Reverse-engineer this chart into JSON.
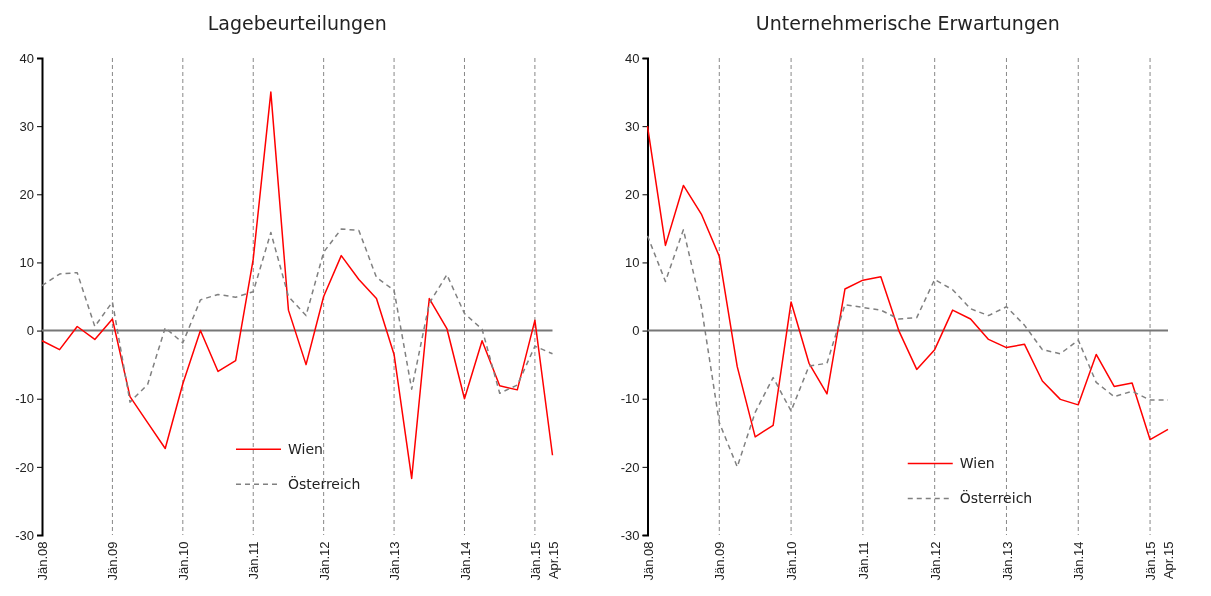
{
  "chart_data": [
    {
      "type": "line",
      "title": "Lagebeurteilungen",
      "categories": [
        "Jän.08",
        null,
        null,
        null,
        "Jän.09",
        null,
        null,
        null,
        "Jän.10",
        null,
        null,
        null,
        "Jän.11",
        null,
        null,
        null,
        "Jän.12",
        null,
        null,
        null,
        "Jän.13",
        null,
        null,
        null,
        "Jän.14",
        null,
        null,
        null,
        "Jän.15",
        "Apr.15"
      ],
      "series": [
        {
          "name": "Wien",
          "color": "#ff0000",
          "line_style": "solid",
          "values": [
            -1.5,
            -2.8,
            0.6,
            -1.3,
            1.7,
            -9.7,
            -13.5,
            -17.3,
            -7.8,
            0,
            -6.0,
            -4.4,
            10.5,
            35,
            3,
            -5,
            5,
            11,
            7.5,
            4.7,
            -3.5,
            -21.7,
            4.7,
            0.3,
            -10,
            -1.5,
            -8.1,
            -8.7,
            1.5,
            -18.3
          ]
        },
        {
          "name": "Österreich",
          "color": "#808080",
          "line_style": "dashed",
          "values": [
            6.6,
            8.3,
            8.5,
            0.6,
            4.2,
            -10.5,
            -7.9,
            0.4,
            -1.8,
            4.5,
            5.3,
            4.9,
            5.7,
            14.4,
            5,
            2.2,
            11.5,
            14.9,
            14.7,
            7.8,
            5.9,
            -8.6,
            4,
            8.2,
            2.5,
            0.2,
            -9.2,
            -8,
            -2.3,
            -3.4
          ]
        }
      ],
      "ylim": [
        -30,
        40
      ],
      "yticks": [
        -30,
        -20,
        -10,
        0,
        10,
        20,
        30,
        40
      ],
      "grid": "x",
      "legend": "bottom",
      "marker": "none"
    },
    {
      "type": "line",
      "title": "Unternehmerische Erwartungen",
      "categories": [
        "Jän.08",
        null,
        null,
        null,
        "Jän.09",
        null,
        null,
        null,
        "Jän.10",
        null,
        null,
        null,
        "Jän.11",
        null,
        null,
        null,
        "Jän.12",
        null,
        null,
        null,
        "Jän.13",
        null,
        null,
        null,
        "Jän.14",
        null,
        null,
        null,
        "Jän.15",
        "Apr.15"
      ],
      "series": [
        {
          "name": "Wien",
          "color": "#ff0000",
          "line_style": "solid",
          "values": [
            30,
            12.5,
            21.3,
            17.1,
            10.9,
            -5.3,
            -15.6,
            -13.9,
            4.2,
            -4.8,
            -9.3,
            6.1,
            7.4,
            7.9,
            0,
            -5.7,
            -2.8,
            3.0,
            1.7,
            -1.3,
            -2.5,
            -2,
            -7.4,
            -10.1,
            -10.9,
            -3.5,
            -8.2,
            -7.7,
            -16,
            -14.5
          ]
        },
        {
          "name": "Österreich",
          "color": "#808080",
          "line_style": "dashed",
          "values": [
            13.9,
            7.2,
            14.8,
            3.5,
            -13.5,
            -20,
            -12,
            -6.9,
            -11.8,
            -5.2,
            -4.8,
            3.8,
            3.4,
            3,
            1.7,
            1.9,
            7.5,
            6.0,
            3.2,
            2.2,
            3.5,
            0.8,
            -2.8,
            -3.4,
            -1.4,
            -7.6,
            -9.7,
            -8.9,
            -10.2,
            -10.2
          ]
        }
      ],
      "ylim": [
        -30,
        40
      ],
      "yticks": [
        -30,
        -20,
        -10,
        0,
        10,
        20,
        30,
        40
      ],
      "grid": "x",
      "legend": "bottom",
      "marker": "none"
    }
  ]
}
